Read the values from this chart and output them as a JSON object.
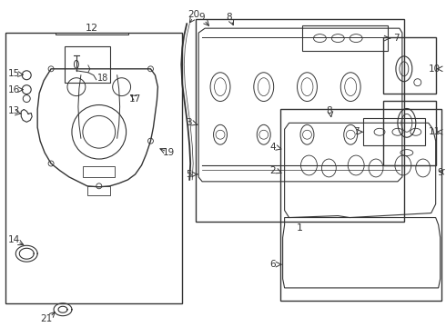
{
  "bg_color": "#ffffff",
  "line_color": "#333333",
  "label_color": "#000000",
  "fig_width": 4.9,
  "fig_height": 3.6,
  "dpi": 100
}
